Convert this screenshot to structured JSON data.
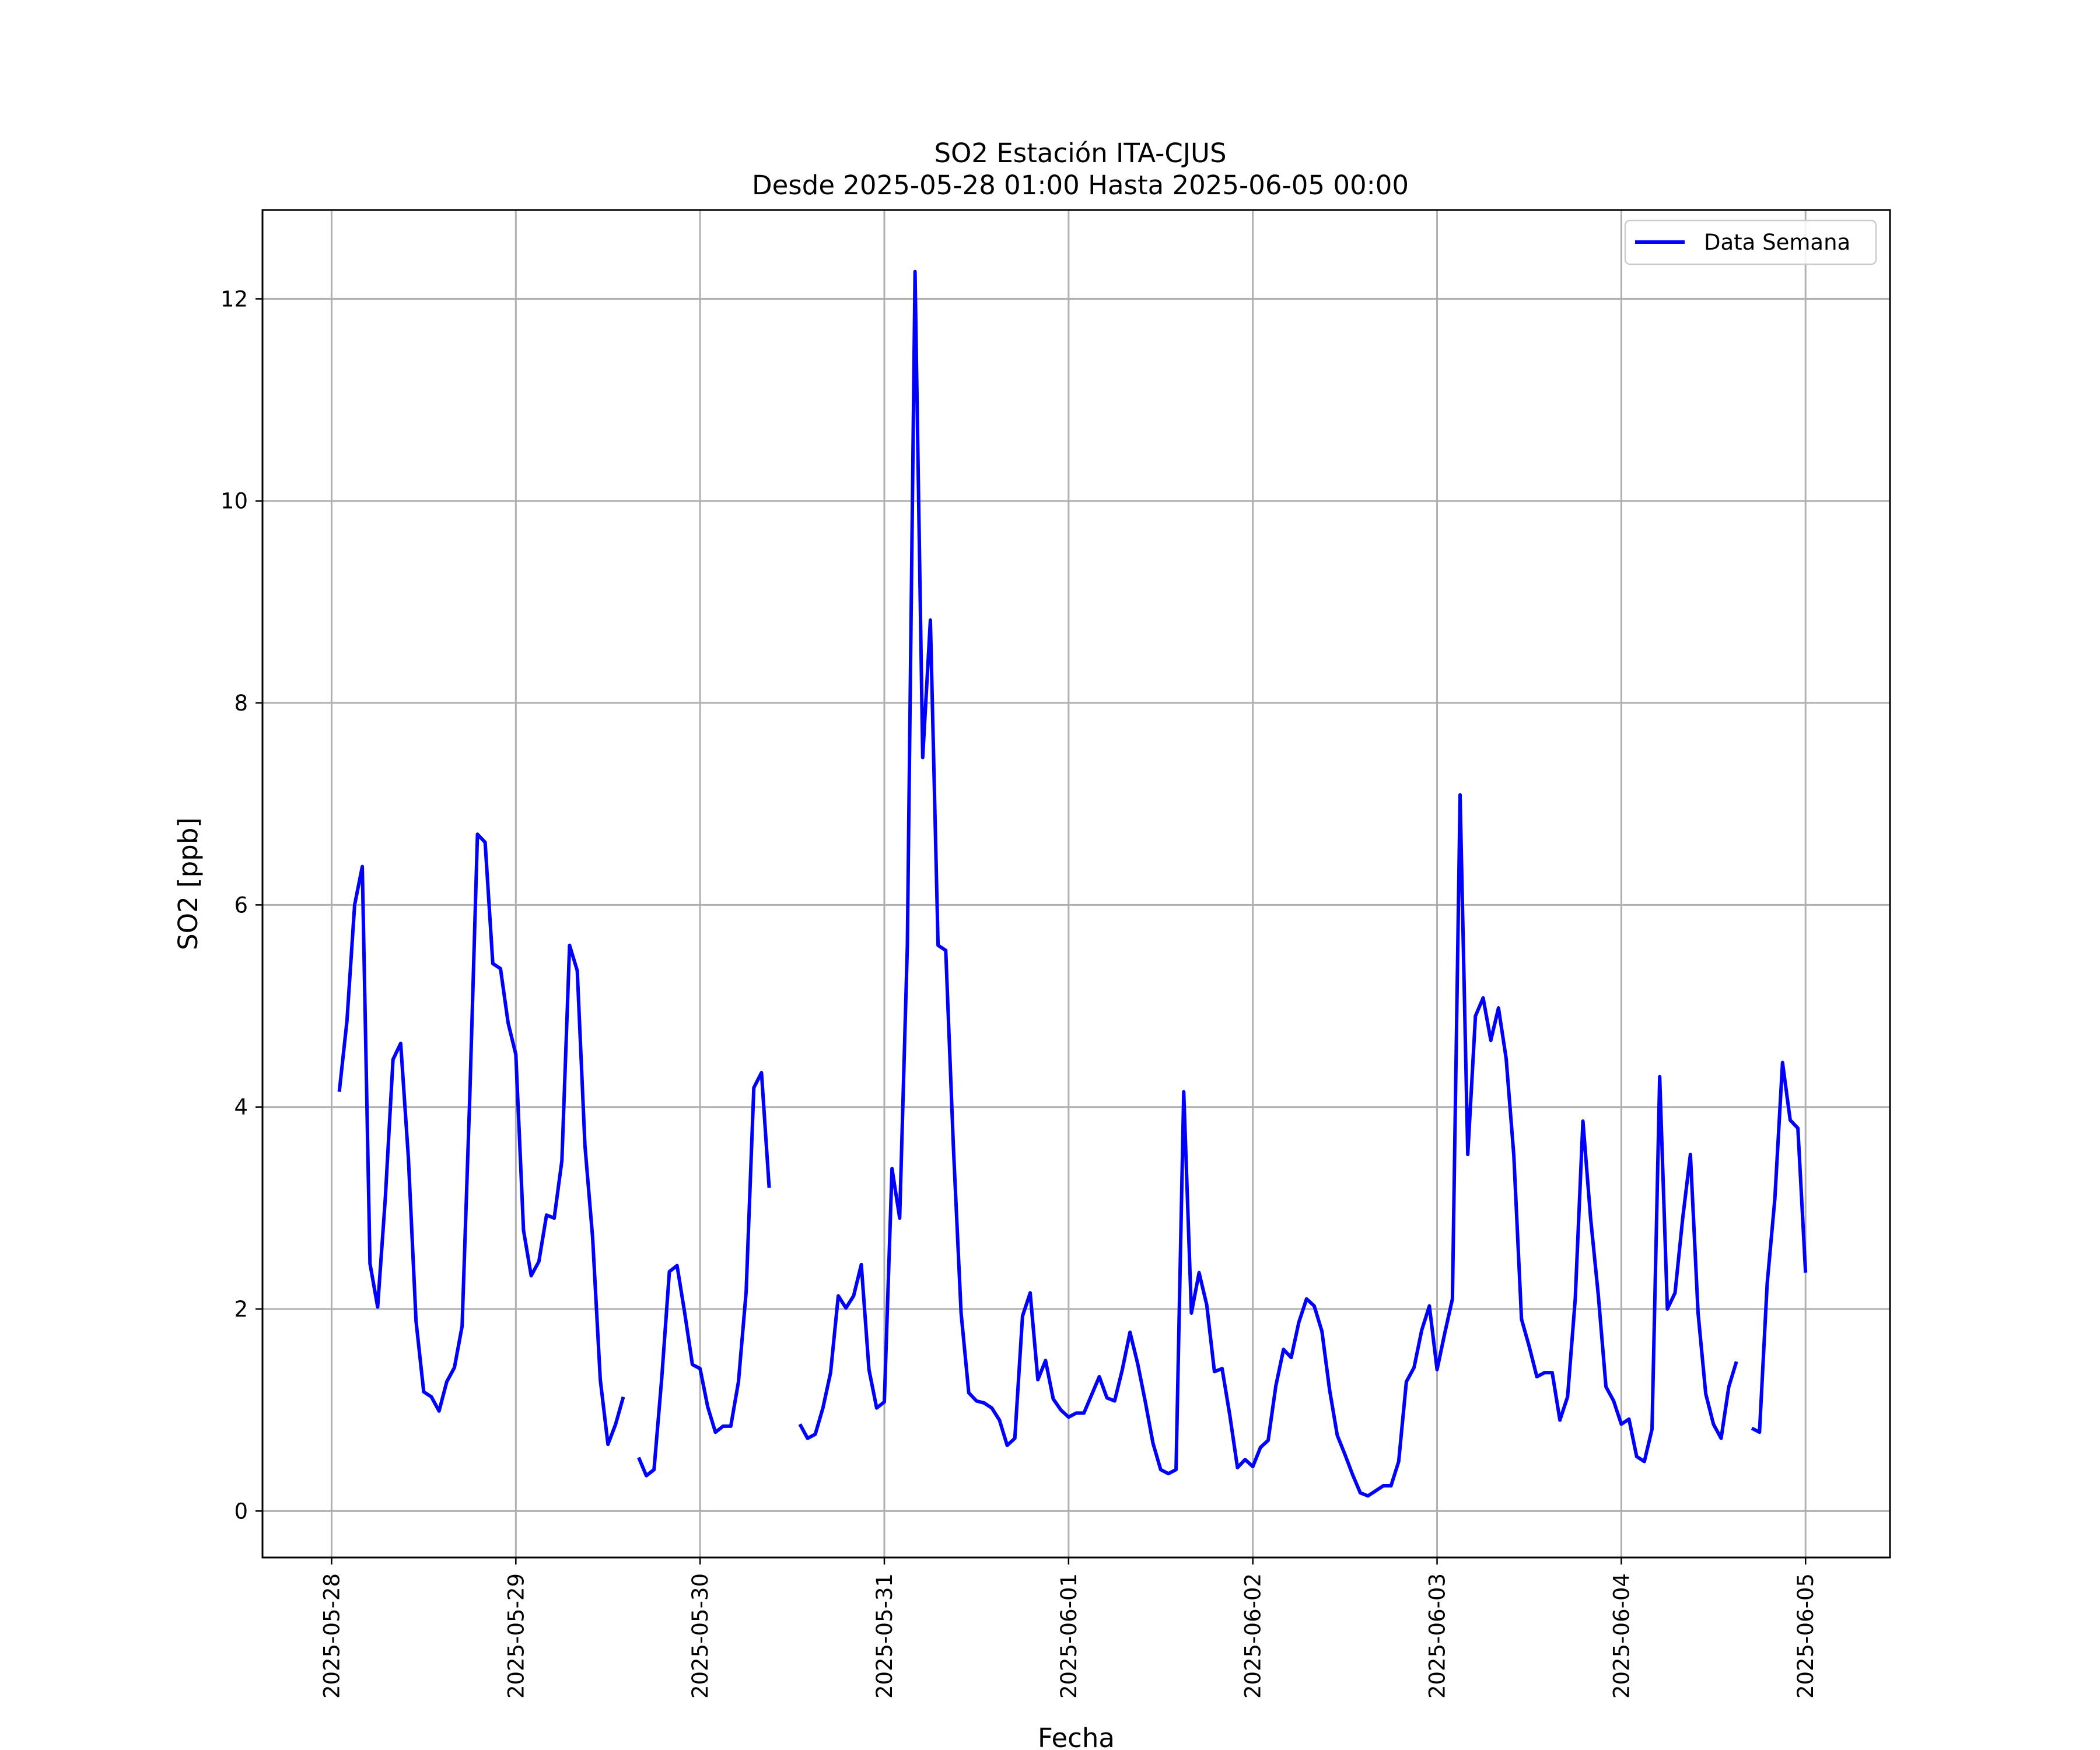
{
  "chart_data": {
    "type": "line",
    "title": "SO2 Estación ITA-CJUS",
    "subtitle": "Desde 2025-05-28 01:00 Hasta 2025-06-05 00:00",
    "xlabel": "Fecha",
    "ylabel": "SO2 [ppb]",
    "xlim": [
      "2025-05-27 15:00",
      "2025-06-05 11:00"
    ],
    "ylim": [
      -0.46,
      12.88
    ],
    "x_ticks": [
      "2025-05-28",
      "2025-05-29",
      "2025-05-30",
      "2025-05-31",
      "2025-06-01",
      "2025-06-02",
      "2025-06-03",
      "2025-06-04",
      "2025-06-05"
    ],
    "y_ticks": [
      0,
      2,
      4,
      6,
      8,
      10,
      12
    ],
    "grid": true,
    "legend": {
      "position": "top-right",
      "entries": [
        "Data Semana"
      ]
    },
    "colors": {
      "series": "#0000ff"
    },
    "series": [
      {
        "name": "Data Semana",
        "x": [
          "2025-05-28 01:00",
          "2025-05-28 02:00",
          "2025-05-28 03:00",
          "2025-05-28 04:00",
          "2025-05-28 05:00",
          "2025-05-28 06:00",
          "2025-05-28 07:00",
          "2025-05-28 08:00",
          "2025-05-28 09:00",
          "2025-05-28 10:00",
          "2025-05-28 11:00",
          "2025-05-28 12:00",
          "2025-05-28 13:00",
          "2025-05-28 14:00",
          "2025-05-28 15:00",
          "2025-05-28 16:00",
          "2025-05-28 17:00",
          "2025-05-28 18:00",
          "2025-05-28 19:00",
          "2025-05-28 20:00",
          "2025-05-28 21:00",
          "2025-05-28 22:00",
          "2025-05-28 23:00",
          "2025-05-29 00:00",
          "2025-05-29 01:00",
          "2025-05-29 02:00",
          "2025-05-29 03:00",
          "2025-05-29 04:00",
          "2025-05-29 05:00",
          "2025-05-29 06:00",
          "2025-05-29 07:00",
          "2025-05-29 08:00",
          "2025-05-29 09:00",
          "2025-05-29 10:00",
          "2025-05-29 11:00",
          "2025-05-29 12:00",
          "2025-05-29 13:00",
          "2025-05-29 14:00",
          "2025-05-29 15:00",
          "2025-05-29 16:00",
          "2025-05-29 17:00",
          "2025-05-29 18:00",
          "2025-05-29 19:00",
          "2025-05-29 20:00",
          "2025-05-29 21:00",
          "2025-05-29 22:00",
          "2025-05-29 23:00",
          "2025-05-30 00:00",
          "2025-05-30 01:00",
          "2025-05-30 02:00",
          "2025-05-30 03:00",
          "2025-05-30 04:00",
          "2025-05-30 05:00",
          "2025-05-30 06:00",
          "2025-05-30 07:00",
          "2025-05-30 08:00",
          "2025-05-30 09:00",
          "2025-05-30 10:00",
          "2025-05-30 11:00",
          "2025-05-30 12:00",
          "2025-05-30 13:00",
          "2025-05-30 14:00",
          "2025-05-30 15:00",
          "2025-05-30 16:00",
          "2025-05-30 17:00",
          "2025-05-30 18:00",
          "2025-05-30 19:00",
          "2025-05-30 20:00",
          "2025-05-30 21:00",
          "2025-05-30 22:00",
          "2025-05-30 23:00",
          "2025-05-31 00:00",
          "2025-05-31 01:00",
          "2025-05-31 02:00",
          "2025-05-31 03:00",
          "2025-05-31 04:00",
          "2025-05-31 05:00",
          "2025-05-31 06:00",
          "2025-05-31 07:00",
          "2025-05-31 08:00",
          "2025-05-31 09:00",
          "2025-05-31 10:00",
          "2025-05-31 11:00",
          "2025-05-31 12:00",
          "2025-05-31 13:00",
          "2025-05-31 14:00",
          "2025-05-31 15:00",
          "2025-05-31 16:00",
          "2025-05-31 17:00",
          "2025-05-31 18:00",
          "2025-05-31 19:00",
          "2025-05-31 20:00",
          "2025-05-31 21:00",
          "2025-05-31 22:00",
          "2025-05-31 23:00",
          "2025-06-01 00:00",
          "2025-06-01 01:00",
          "2025-06-01 02:00",
          "2025-06-01 03:00",
          "2025-06-01 04:00",
          "2025-06-01 05:00",
          "2025-06-01 06:00",
          "2025-06-01 07:00",
          "2025-06-01 08:00",
          "2025-06-01 09:00",
          "2025-06-01 10:00",
          "2025-06-01 11:00",
          "2025-06-01 12:00",
          "2025-06-01 13:00",
          "2025-06-01 14:00",
          "2025-06-01 15:00",
          "2025-06-01 16:00",
          "2025-06-01 17:00",
          "2025-06-01 18:00",
          "2025-06-01 19:00",
          "2025-06-01 20:00",
          "2025-06-01 21:00",
          "2025-06-01 22:00",
          "2025-06-01 23:00",
          "2025-06-02 00:00",
          "2025-06-02 01:00",
          "2025-06-02 02:00",
          "2025-06-02 03:00",
          "2025-06-02 04:00",
          "2025-06-02 05:00",
          "2025-06-02 06:00",
          "2025-06-02 07:00",
          "2025-06-02 08:00",
          "2025-06-02 09:00",
          "2025-06-02 10:00",
          "2025-06-02 11:00",
          "2025-06-02 12:00",
          "2025-06-02 13:00",
          "2025-06-02 14:00",
          "2025-06-02 15:00",
          "2025-06-02 16:00",
          "2025-06-02 17:00",
          "2025-06-02 18:00",
          "2025-06-02 19:00",
          "2025-06-02 20:00",
          "2025-06-02 21:00",
          "2025-06-02 22:00",
          "2025-06-02 23:00",
          "2025-06-03 00:00",
          "2025-06-03 01:00",
          "2025-06-03 02:00",
          "2025-06-03 03:00",
          "2025-06-03 04:00",
          "2025-06-03 05:00",
          "2025-06-03 06:00",
          "2025-06-03 07:00",
          "2025-06-03 08:00",
          "2025-06-03 09:00",
          "2025-06-03 10:00",
          "2025-06-03 11:00",
          "2025-06-03 12:00",
          "2025-06-03 13:00",
          "2025-06-03 14:00",
          "2025-06-03 15:00",
          "2025-06-03 16:00",
          "2025-06-03 17:00",
          "2025-06-03 18:00",
          "2025-06-03 19:00",
          "2025-06-03 20:00",
          "2025-06-03 21:00",
          "2025-06-03 22:00",
          "2025-06-03 23:00",
          "2025-06-04 00:00",
          "2025-06-04 01:00",
          "2025-06-04 02:00",
          "2025-06-04 03:00",
          "2025-06-04 04:00",
          "2025-06-04 05:00",
          "2025-06-04 06:00",
          "2025-06-04 07:00",
          "2025-06-04 08:00",
          "2025-06-04 09:00",
          "2025-06-04 10:00",
          "2025-06-04 11:00",
          "2025-06-04 12:00",
          "2025-06-04 13:00",
          "2025-06-04 14:00",
          "2025-06-04 15:00",
          "2025-06-04 16:00",
          "2025-06-04 17:00",
          "2025-06-04 18:00",
          "2025-06-04 19:00",
          "2025-06-04 20:00",
          "2025-06-04 21:00",
          "2025-06-04 22:00",
          "2025-06-04 23:00",
          "2025-06-05 00:00"
        ],
        "y": [
          4.15,
          4.85,
          6.0,
          6.38,
          2.45,
          2.02,
          3.1,
          4.47,
          4.63,
          3.5,
          1.88,
          1.18,
          1.13,
          0.99,
          1.28,
          1.42,
          1.83,
          4.1,
          6.7,
          6.62,
          5.42,
          5.37,
          4.83,
          4.52,
          2.78,
          2.33,
          2.47,
          2.93,
          2.9,
          3.47,
          5.6,
          5.35,
          3.62,
          2.71,
          1.3,
          0.66,
          0.86,
          1.13,
          null,
          0.53,
          0.35,
          0.41,
          1.31,
          2.37,
          2.43,
          1.96,
          1.45,
          1.41,
          1.03,
          0.78,
          0.84,
          0.84,
          1.28,
          2.17,
          4.19,
          4.34,
          3.2,
          null,
          null,
          null,
          0.86,
          0.72,
          0.76,
          1.02,
          1.37,
          2.13,
          2.01,
          2.13,
          2.44,
          1.4,
          1.02,
          1.08,
          3.39,
          2.9,
          5.6,
          12.27,
          7.46,
          8.82,
          5.6,
          5.55,
          3.6,
          1.96,
          1.17,
          1.09,
          1.07,
          1.02,
          0.9,
          0.65,
          0.72,
          1.93,
          2.16,
          1.3,
          1.49,
          1.11,
          1.0,
          0.93,
          0.97,
          0.97,
          1.15,
          1.33,
          1.12,
          1.09,
          1.4,
          1.77,
          1.46,
          1.08,
          0.67,
          0.41,
          0.37,
          0.41,
          4.15,
          1.96,
          2.36,
          2.04,
          1.38,
          1.41,
          0.95,
          0.43,
          0.51,
          0.44,
          0.63,
          0.7,
          1.24,
          1.6,
          1.52,
          1.87,
          2.1,
          2.03,
          1.78,
          1.2,
          0.75,
          0.56,
          0.36,
          0.18,
          0.15,
          0.2,
          0.25,
          0.25,
          0.49,
          1.28,
          1.42,
          1.79,
          2.03,
          1.4,
          1.76,
          2.1,
          7.09,
          3.53,
          4.9,
          5.08,
          4.66,
          4.98,
          4.48,
          3.52,
          1.9,
          1.63,
          1.33,
          1.37,
          1.37,
          0.9,
          1.13,
          2.1,
          3.86,
          2.9,
          2.14,
          1.23,
          1.09,
          0.86,
          0.91,
          0.54,
          0.49,
          0.81,
          4.3,
          2.0,
          2.16,
          2.9,
          3.53,
          1.96,
          1.16,
          0.86,
          0.72,
          1.23,
          1.48,
          null,
          0.82,
          0.78,
          2.25,
          3.09,
          4.44,
          3.87,
          3.79,
          2.36
        ]
      }
    ]
  }
}
